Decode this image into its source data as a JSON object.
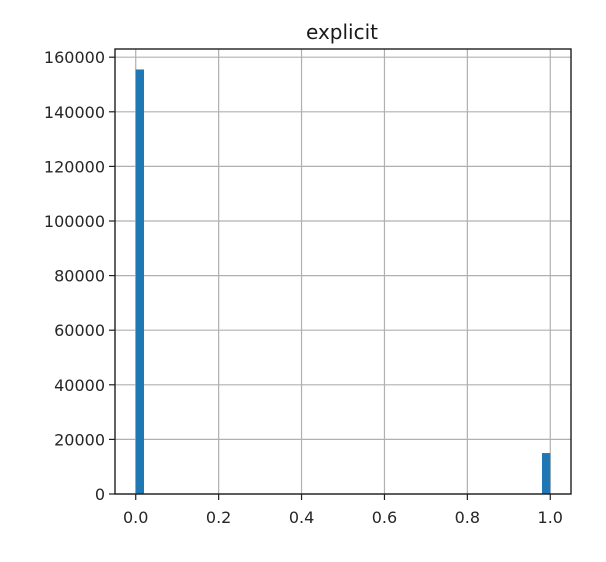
{
  "chart_data": {
    "type": "bar",
    "title": "explicit",
    "xlabel": "",
    "ylabel": "",
    "xlim": [
      -0.05,
      1.05
    ],
    "ylim": [
      0,
      163000
    ],
    "x_ticks": [
      0.0,
      0.2,
      0.4,
      0.6,
      0.8,
      1.0
    ],
    "x_tick_labels": [
      "0.0",
      "0.2",
      "0.4",
      "0.6",
      "0.8",
      "1.0"
    ],
    "y_ticks": [
      0,
      20000,
      40000,
      60000,
      80000,
      100000,
      120000,
      140000,
      160000
    ],
    "y_tick_labels": [
      "0",
      "20000",
      "40000",
      "60000",
      "80000",
      "100000",
      "120000",
      "140000",
      "160000"
    ],
    "grid": true,
    "bin_width": 0.02,
    "bins": [
      {
        "x_start": 0.0,
        "x_end": 0.02,
        "value": 155500
      },
      {
        "x_start": 0.98,
        "x_end": 1.0,
        "value": 15000
      }
    ],
    "bar_color": "#1f77b4"
  }
}
